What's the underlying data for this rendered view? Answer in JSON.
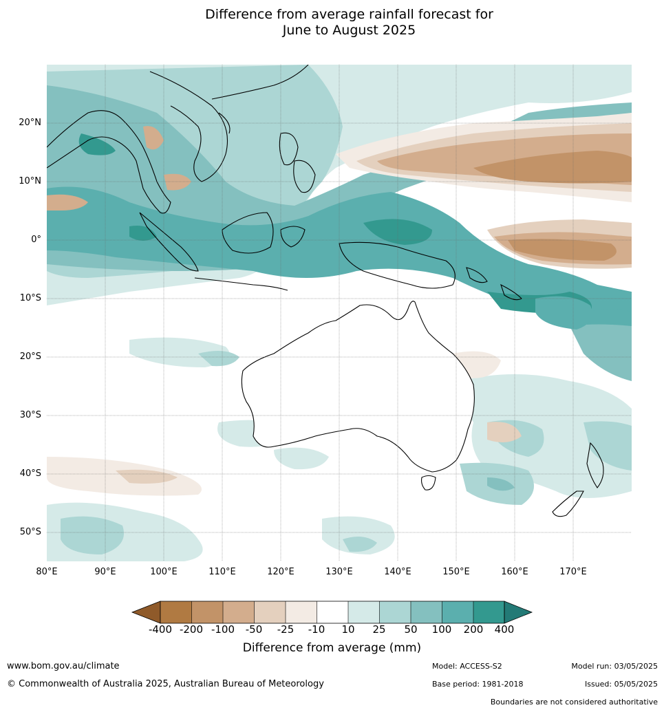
{
  "title": {
    "line1": "Difference from average rainfall forecast for",
    "line2": "June to August 2025"
  },
  "map": {
    "lat_labels": [
      "20°N",
      "10°N",
      "0°",
      "10°S",
      "20°S",
      "30°S",
      "40°S",
      "50°S"
    ],
    "lon_labels": [
      "80°E",
      "90°E",
      "100°E",
      "110°E",
      "120°E",
      "130°E",
      "140°E",
      "150°E",
      "160°E",
      "170°E"
    ],
    "colors": {
      "dry_400": "#8f5a2a",
      "dry_200": "#b07a42",
      "dry_100": "#c29368",
      "dry_50": "#d3ad8d",
      "dry_25": "#e4d0be",
      "dry_10": "#f3ebe4",
      "neutral": "#ffffff",
      "wet_10": "#d5eae8",
      "wet_25": "#acd6d4",
      "wet_50": "#84c0bf",
      "wet_100": "#5bafae",
      "wet_200": "#33998f",
      "wet_400": "#237a76"
    }
  },
  "colorbar": {
    "ticks": [
      "-400",
      "-200",
      "-100",
      "-50",
      "-25",
      "-10",
      "10",
      "25",
      "50",
      "100",
      "200",
      "400"
    ],
    "label": "Difference from average (mm)"
  },
  "footer": {
    "url": "www.bom.gov.au/climate",
    "copyright": "© Commonwealth of Australia 2025, Australian Bureau of Meteorology",
    "model": "Model: ACCESS-S2",
    "base_period": "Base period: 1981-2018",
    "model_run": "Model run: 03/05/2025",
    "issued": "Issued: 05/05/2025",
    "disclaimer": "Boundaries are not considered authoritative"
  }
}
